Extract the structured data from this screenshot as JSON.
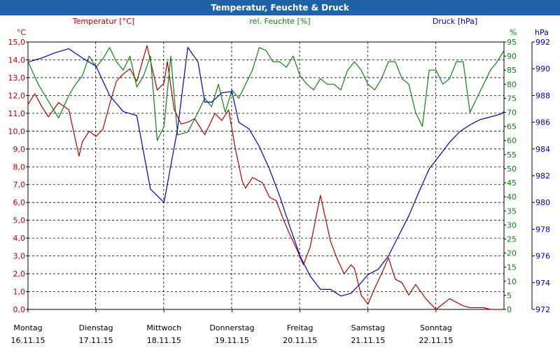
{
  "window": {
    "title": "Temperatur, Feuchte & Druck"
  },
  "chart_data": {
    "type": "line",
    "title": "Temperatur, Feuchte & Druck",
    "axes": {
      "temperature": {
        "unit": "°C",
        "label": "Temperatur [°C]",
        "range": [
          0,
          15
        ],
        "ticks": [
          "0,0",
          "1,0",
          "2,0",
          "3,0",
          "4,0",
          "5,0",
          "6,0",
          "7,0",
          "8,0",
          "9,0",
          "10,0",
          "11,0",
          "12,0",
          "13,0",
          "14,0",
          "15,0"
        ],
        "color": "#b00000"
      },
      "humidity": {
        "unit": "%",
        "label": "rel. Feuchte [%]",
        "range": [
          0,
          95
        ],
        "ticks": [
          "0",
          "5",
          "10",
          "15",
          "20",
          "25",
          "30",
          "35",
          "40",
          "45",
          "50",
          "55",
          "60",
          "65",
          "70",
          "75",
          "80",
          "85",
          "90",
          "95"
        ],
        "color": "#108010"
      },
      "pressure": {
        "unit": "hPa",
        "label": "Druck [hPa]",
        "range": [
          972,
          992
        ],
        "ticks": [
          "972",
          "974",
          "976",
          "978",
          "980",
          "982",
          "984",
          "986",
          "988",
          "990",
          "992"
        ],
        "color": "#0000b0"
      }
    },
    "x_labels": [
      {
        "day": "Montag",
        "date": "16.11.15"
      },
      {
        "day": "Dienstag",
        "date": "17.11.15"
      },
      {
        "day": "Mittwoch",
        "date": "18.11.15"
      },
      {
        "day": "Donnerstag",
        "date": "19.11.15"
      },
      {
        "day": "Freitag",
        "date": "20.11.15"
      },
      {
        "day": "Samstag",
        "date": "21.11.15"
      },
      {
        "day": "Sonntag",
        "date": "22.11.15"
      }
    ],
    "x_range_days": [
      0,
      7
    ],
    "series": [
      {
        "name": "Temperatur",
        "axis": "temperature",
        "x": [
          0,
          0.1,
          0.2,
          0.3,
          0.45,
          0.6,
          0.75,
          0.8,
          0.9,
          1.0,
          1.1,
          1.2,
          1.3,
          1.4,
          1.5,
          1.6,
          1.75,
          1.9,
          2.0,
          2.05,
          2.15,
          2.25,
          2.35,
          2.45,
          2.6,
          2.75,
          2.85,
          2.95,
          3.05,
          3.15,
          3.2,
          3.3,
          3.45,
          3.55,
          3.65,
          3.75,
          3.85,
          3.95,
          4.05,
          4.15,
          4.3,
          4.45,
          4.55,
          4.65,
          4.75,
          4.8,
          4.9,
          5.0,
          5.1,
          5.2,
          5.3,
          5.4,
          5.5,
          5.6,
          5.7,
          5.85,
          5.95,
          6.0,
          6.1,
          6.2,
          6.3,
          6.4,
          6.5,
          6.6,
          6.7,
          6.8,
          6.9,
          7.0
        ],
        "values": [
          11.5,
          12.1,
          11.4,
          10.8,
          11.6,
          11.2,
          8.6,
          9.4,
          10.0,
          9.7,
          10.1,
          11.5,
          12.8,
          13.2,
          13.5,
          12.8,
          14.8,
          12.3,
          12.7,
          13.9,
          11.2,
          10.4,
          10.5,
          10.7,
          9.8,
          11.0,
          10.6,
          11.2,
          9.0,
          7.2,
          6.8,
          7.4,
          7.1,
          6.3,
          6.1,
          5.1,
          4.2,
          3.4,
          2.5,
          3.5,
          6.4,
          3.8,
          2.8,
          2.0,
          2.5,
          2.3,
          0.8,
          0.3,
          1.2,
          2.0,
          2.9,
          1.7,
          1.5,
          0.8,
          1.4,
          0.6,
          0.2,
          0.0,
          0.3,
          0.6,
          0.4,
          0.2,
          0.1,
          0.1,
          0.1,
          0.0,
          0.0,
          0.0
        ]
      },
      {
        "name": "rel. Feuchte",
        "axis": "humidity",
        "x": [
          0,
          0.15,
          0.3,
          0.45,
          0.6,
          0.7,
          0.8,
          0.9,
          1.0,
          1.1,
          1.2,
          1.3,
          1.4,
          1.5,
          1.6,
          1.7,
          1.8,
          1.9,
          2.0,
          2.1,
          2.2,
          2.35,
          2.5,
          2.6,
          2.7,
          2.8,
          2.9,
          3.0,
          3.1,
          3.2,
          3.3,
          3.4,
          3.5,
          3.6,
          3.7,
          3.8,
          3.9,
          4.0,
          4.1,
          4.2,
          4.3,
          4.4,
          4.5,
          4.6,
          4.7,
          4.8,
          4.9,
          5.0,
          5.1,
          5.2,
          5.3,
          5.4,
          5.5,
          5.6,
          5.7,
          5.8,
          5.9,
          6.0,
          6.1,
          6.2,
          6.3,
          6.4,
          6.5,
          6.6,
          6.7,
          6.8,
          6.9,
          7.0
        ],
        "values": [
          88,
          80,
          74,
          68,
          76,
          80,
          83,
          90,
          86,
          89,
          93,
          88,
          85,
          90,
          79,
          83,
          90,
          60,
          65,
          90,
          62,
          63,
          70,
          75,
          72,
          80,
          70,
          78,
          75,
          80,
          85,
          93,
          92,
          88,
          88,
          86,
          90,
          83,
          80,
          78,
          82,
          80,
          80,
          78,
          85,
          88,
          85,
          80,
          78,
          82,
          88,
          88,
          82,
          80,
          70,
          65,
          85,
          85,
          80,
          82,
          88,
          88,
          70,
          75,
          80,
          85,
          88,
          92
        ]
      },
      {
        "name": "Druck",
        "axis": "pressure",
        "x": [
          0,
          0.2,
          0.4,
          0.6,
          0.8,
          1.0,
          1.2,
          1.4,
          1.6,
          1.8,
          2.0,
          2.2,
          2.35,
          2.5,
          2.6,
          2.7,
          2.85,
          3.0,
          3.1,
          3.25,
          3.4,
          3.55,
          3.7,
          3.85,
          4.0,
          4.15,
          4.3,
          4.45,
          4.6,
          4.75,
          4.9,
          5.0,
          5.15,
          5.3,
          5.45,
          5.6,
          5.75,
          5.9,
          6.05,
          6.2,
          6.35,
          6.5,
          6.65,
          6.8,
          6.95,
          7.0
        ],
        "values": [
          990.5,
          990.8,
          991.2,
          991.5,
          990.8,
          990.2,
          988.0,
          986.8,
          986.5,
          981.0,
          980.0,
          985.5,
          991.6,
          990.5,
          987.5,
          987.5,
          988.2,
          988.3,
          986.0,
          985.5,
          984.2,
          982.5,
          980.5,
          978.2,
          976.0,
          974.5,
          973.5,
          973.5,
          973.0,
          973.2,
          974.0,
          974.6,
          975.0,
          976.0,
          977.5,
          979.0,
          980.8,
          982.5,
          983.5,
          984.5,
          985.3,
          985.8,
          986.2,
          986.4,
          986.6,
          986.8
        ]
      }
    ]
  }
}
